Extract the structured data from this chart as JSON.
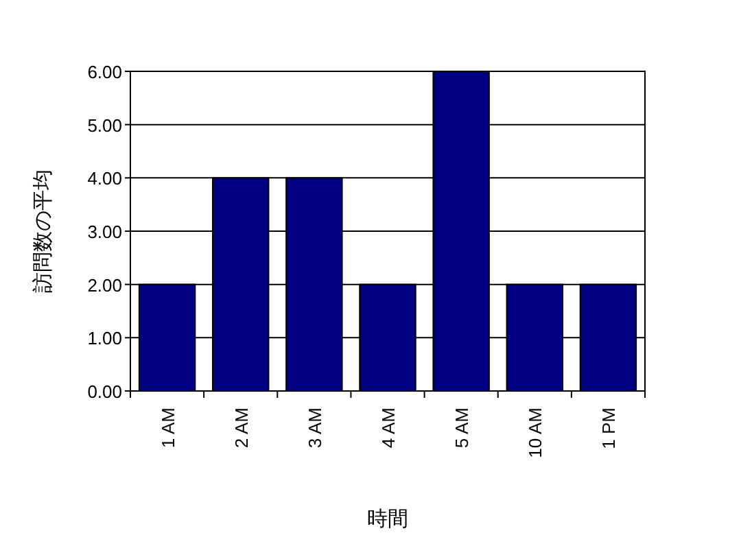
{
  "chart_data": {
    "type": "bar",
    "xlabel": "時間",
    "ylabel": "訪問数の平均",
    "categories": [
      "1 AM",
      "2 AM",
      "3 AM",
      "4 AM",
      "5 AM",
      "10 AM",
      "1 PM"
    ],
    "values": [
      2,
      4,
      4,
      2,
      6,
      2,
      2
    ],
    "color": "#000080",
    "ylim": [
      0,
      6
    ],
    "yticks": [
      {
        "value": 0,
        "label": "0.00"
      },
      {
        "value": 1,
        "label": "1.00"
      },
      {
        "value": 2,
        "label": "2.00"
      },
      {
        "value": 3,
        "label": "3.00"
      },
      {
        "value": 4,
        "label": "4.00"
      },
      {
        "value": 5,
        "label": "5.00"
      },
      {
        "value": 6,
        "label": "6.00"
      }
    ],
    "grid": "y"
  }
}
